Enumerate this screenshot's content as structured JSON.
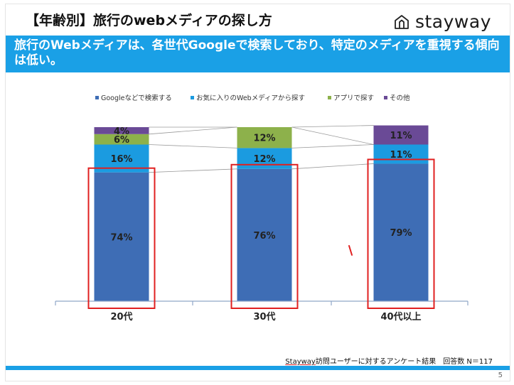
{
  "header": {
    "title": "【年齢別】旅行のwebメディアの探し方",
    "logo_text": "stayway"
  },
  "banner": {
    "text": "旅行のWebメディアは、各世代Googleで検索しており、特定のメディアを重視する傾向は低い。"
  },
  "chart_data": {
    "type": "bar",
    "stacked": true,
    "categories": [
      "20代",
      "30代",
      "40代以上"
    ],
    "series": [
      {
        "name": "Googleなどで検索する",
        "color": "#3e6db5",
        "values": [
          74,
          76,
          79
        ],
        "labels": [
          "74%",
          "76%",
          "79%"
        ]
      },
      {
        "name": "お気に入りのWebメディアから探す",
        "color": "#1b9be0",
        "values": [
          16,
          12,
          11
        ],
        "labels": [
          "16%",
          "12%",
          "11%"
        ]
      },
      {
        "name": "アプリで探す",
        "color": "#8db14b",
        "values": [
          6,
          12,
          0
        ],
        "labels": [
          "6%",
          "12%",
          ""
        ]
      },
      {
        "name": "その他",
        "color": "#6a4a96",
        "values": [
          4,
          0,
          11
        ],
        "labels": [
          "4%",
          "",
          "11%"
        ]
      }
    ],
    "ylim": [
      0,
      100
    ],
    "legend_position": "top",
    "grid": false,
    "highlight": "red outline around the Googleなどで検索する segment of each bar",
    "highlight_color": "#e02020"
  },
  "footer": {
    "source_brand": "Stayway",
    "source_rest": "訪問ユーザーに対するアンケート結果　回答数 N＝117",
    "page_number": "5"
  }
}
